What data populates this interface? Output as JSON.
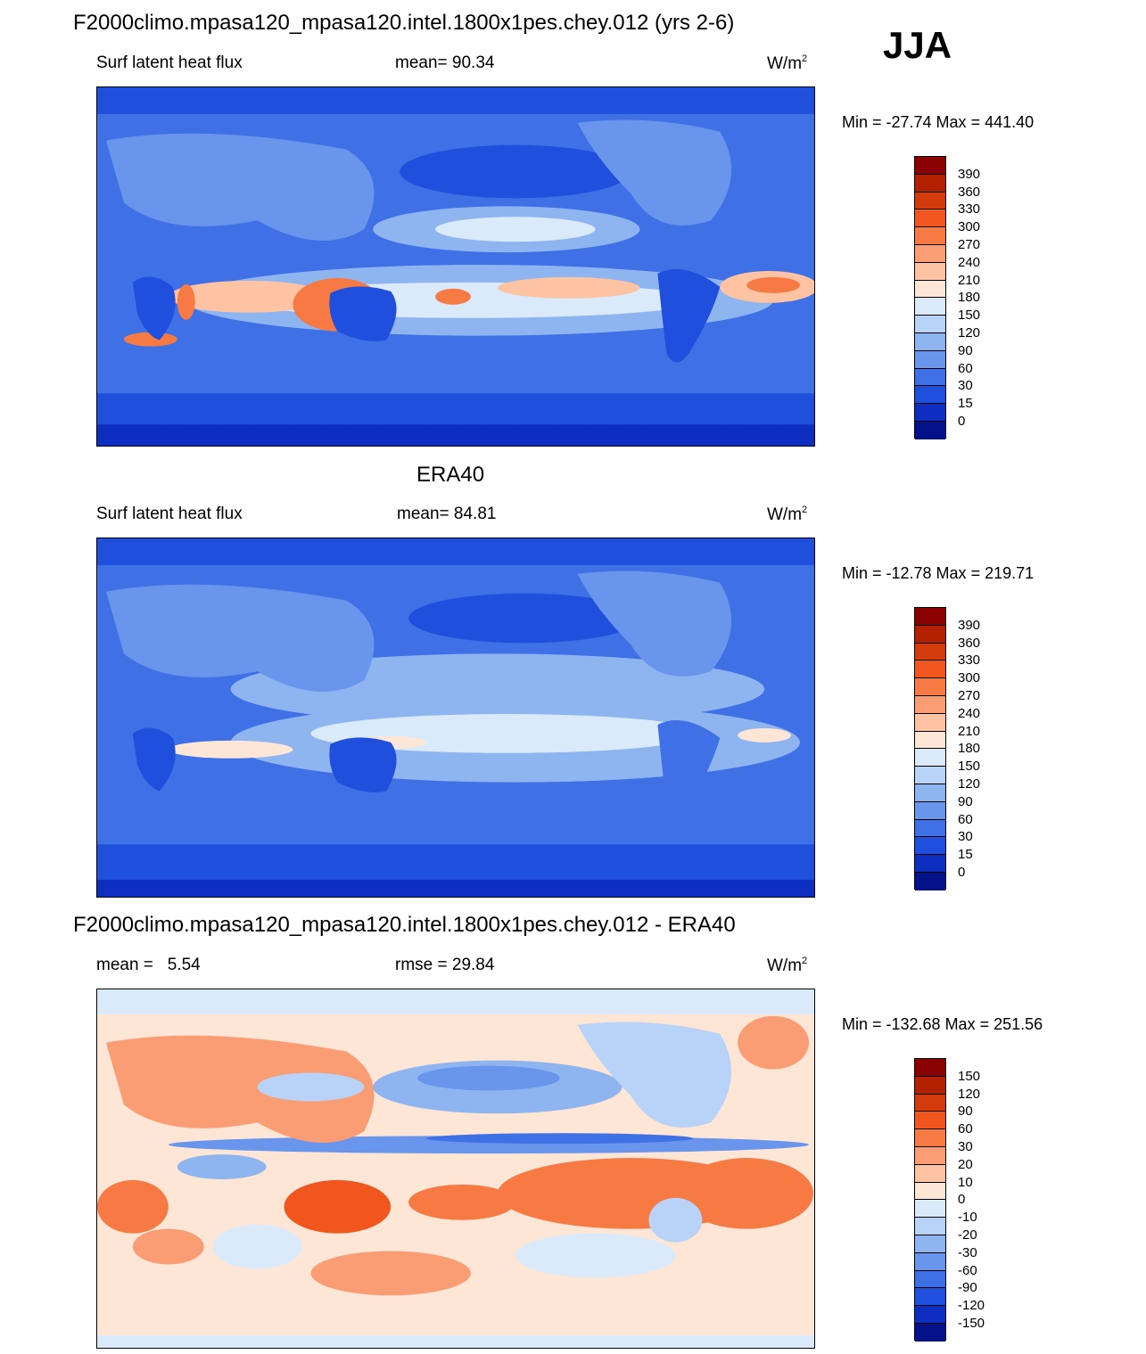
{
  "season": "JJA",
  "panel1": {
    "title": "F2000climo.mpasa120_mpasa120.intel.1800x1pes.chey.012 (yrs 2-6)",
    "left": "Surf latent heat flux",
    "center_label": "mean=",
    "center_value": "90.34",
    "units_base": "W/m",
    "units_sup": "2",
    "minmax": "Min = -27.74 Max = 441.40"
  },
  "panel2": {
    "title": "ERA40",
    "left": "Surf latent heat flux",
    "center_label": "mean=",
    "center_value": "84.81",
    "units_base": "W/m",
    "units_sup": "2",
    "minmax": "Min = -12.78 Max = 219.71"
  },
  "panel3": {
    "title": "F2000climo.mpasa120_mpasa120.intel.1800x1pes.chey.012 - ERA40",
    "left_label": "mean =",
    "left_value": "5.54",
    "center_label": "rmse =",
    "center_value": "29.84",
    "units_base": "W/m",
    "units_sup": "2",
    "minmax": "Min = -132.68 Max = 251.56"
  },
  "colorbar_abs": {
    "ticks": [
      "390",
      "360",
      "330",
      "300",
      "270",
      "240",
      "210",
      "180",
      "150",
      "120",
      "90",
      "60",
      "30",
      "15",
      "0"
    ],
    "colors": [
      "#8b0000",
      "#b22000",
      "#d43b0c",
      "#f0561e",
      "#f77a45",
      "#fb9d74",
      "#fdc3a3",
      "#fde6d6",
      "#dbeafb",
      "#b8d3f7",
      "#8fb5f0",
      "#6995ec",
      "#3f70e6",
      "#1f4fdc",
      "#0e2ec2",
      "#04128a"
    ]
  },
  "colorbar_diff": {
    "ticks": [
      "150",
      "120",
      "90",
      "60",
      "30",
      "20",
      "10",
      "0",
      "-10",
      "-20",
      "-30",
      "-60",
      "-90",
      "-120",
      "-150"
    ],
    "colors": [
      "#8b0000",
      "#b22000",
      "#d43b0c",
      "#f0561e",
      "#f77a45",
      "#fb9d74",
      "#fdc3a3",
      "#fde6d6",
      "#dbeafb",
      "#b8d3f7",
      "#8fb5f0",
      "#6995ec",
      "#3f70e6",
      "#1f4fdc",
      "#0e2ec2",
      "#04128a"
    ]
  }
}
